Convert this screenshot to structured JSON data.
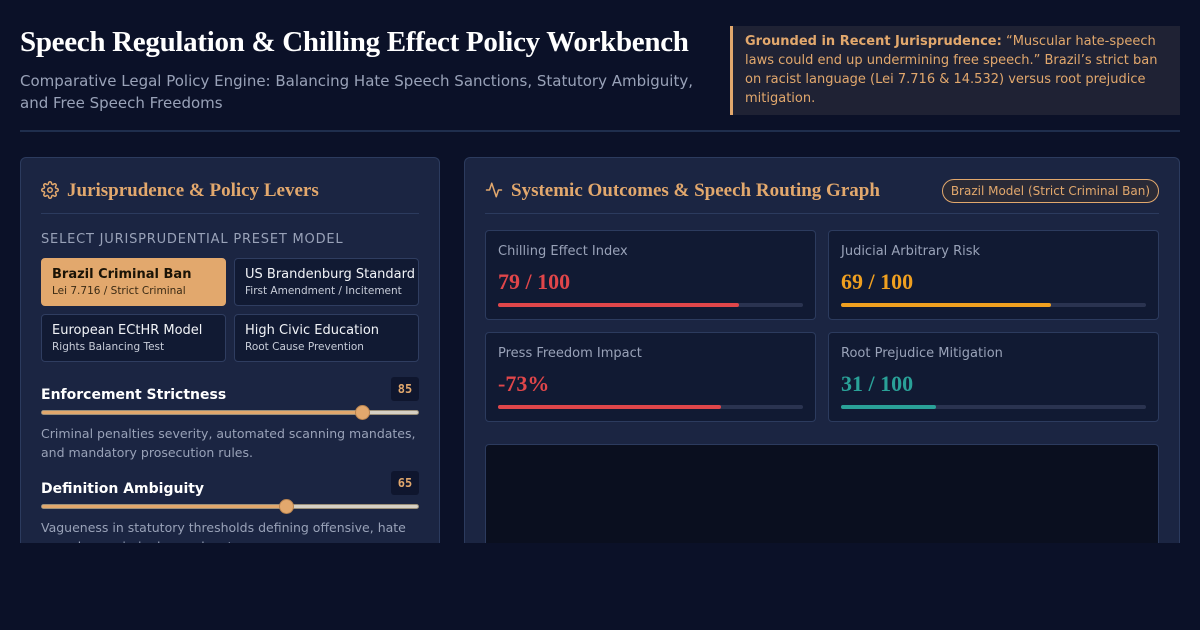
{
  "header": {
    "title": "Speech Regulation & Chilling Effect Policy Workbench",
    "subtitle": "Comparative Legal Policy Engine: Balancing Hate Speech Sanctions, Statutory Ambiguity, and Free Speech Freedoms",
    "callout_label": "Grounded in Recent Jurisprudence:",
    "callout_text": "“Muscular hate-speech laws could end up undermining free speech.” Brazil’s strict ban on racist language (Lei 7.716 & 14.532) versus root prejudice mitigation."
  },
  "levers_panel": {
    "title": "Jurisprudence & Policy Levers",
    "icon": "gear-icon",
    "preset_label": "SELECT JURISPRUDENTIAL PRESET MODEL",
    "presets": [
      {
        "name": "Brazil Criminal Ban",
        "sub": "Lei 7.716 / Strict Criminal",
        "active": true
      },
      {
        "name": "US Brandenburg Standard",
        "sub": "First Amendment / Incitement",
        "active": false
      },
      {
        "name": "European ECtHR Model",
        "sub": "Rights Balancing Test",
        "active": false
      },
      {
        "name": "High Civic Education",
        "sub": "Root Cause Prevention",
        "active": false
      }
    ],
    "levers": [
      {
        "name": "Enforcement Strictness",
        "value": "85",
        "level": 85,
        "desc": "Criminal penalties severity, automated scanning mandates, and mandatory prosecution rules."
      },
      {
        "name": "Definition Ambiguity",
        "value": "65",
        "level": 65,
        "desc": "Vagueness in statutory thresholds defining offensive, hate speech, or criminal speech acts."
      }
    ]
  },
  "outcomes_panel": {
    "title": "Systemic Outcomes & Speech Routing Graph",
    "icon": "pulse-icon",
    "badge": "Brazil Model (Strict Criminal Ban)",
    "metrics": [
      {
        "label": "Chilling Effect Index",
        "value": "79 / 100",
        "level": 79,
        "color": "#e0464a"
      },
      {
        "label": "Judicial Arbitrary Risk",
        "value": "69 / 100",
        "level": 69,
        "color": "#f0a020"
      },
      {
        "label": "Press Freedom Impact",
        "value": "-73%",
        "level": 73,
        "color": "#e0464a"
      },
      {
        "label": "Root Prejudice Mitigation",
        "value": "31 / 100",
        "level": 31,
        "color": "#2aa198"
      }
    ]
  },
  "colors": {
    "background": "#0b1128",
    "panel": "#1b2542",
    "accent": "#e2a86d"
  }
}
